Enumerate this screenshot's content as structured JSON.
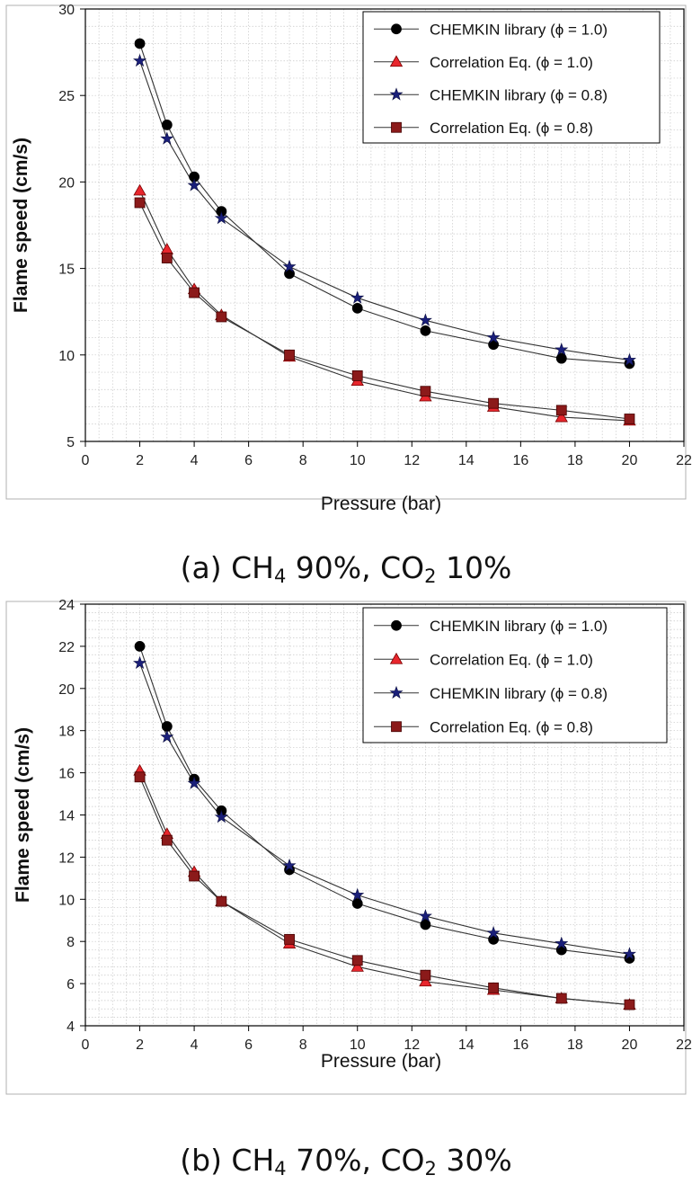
{
  "figure": {
    "caption_a": {
      "prefix": "(a) CH",
      "sub1": "4",
      "mid": " 90%, CO",
      "sub2": "2",
      "suffix": " 10%"
    },
    "caption_b": {
      "prefix": "(b) CH",
      "sub1": "4",
      "mid": " 70%, CO",
      "sub2": "2",
      "suffix": " 30%"
    }
  },
  "colors": {
    "chemkin_phi_1": "#000000",
    "correlation_phi_1": "#e8262d",
    "chemkin_phi_08": "#1a1f7a",
    "correlation_phi_08": "#8b1a1a",
    "line": "#333333",
    "grid": "#c8c8c8"
  },
  "chart_data": [
    {
      "type": "line",
      "caption": "(a) CH4 90%, CO2 10%",
      "xlabel": "Pressure (bar)",
      "ylabel": "Flame speed (cm/s)",
      "xlim": [
        0,
        22
      ],
      "ylim": [
        5,
        30
      ],
      "xticks": [
        0,
        2,
        4,
        6,
        8,
        10,
        12,
        14,
        16,
        18,
        20,
        22
      ],
      "yticks": [
        5,
        10,
        15,
        20,
        25,
        30
      ],
      "grid": true,
      "legend_position": "top-right",
      "x": [
        2,
        3,
        4,
        5,
        7.5,
        10,
        12.5,
        15,
        17.5,
        20
      ],
      "series": [
        {
          "name": "CHEMKIN library (ϕ = 1.0)",
          "marker": "circle",
          "color_key": "chemkin_phi_1",
          "values": [
            28.0,
            23.3,
            20.3,
            18.3,
            14.7,
            12.7,
            11.4,
            10.6,
            9.8,
            9.5
          ]
        },
        {
          "name": "Correlation Eq. (ϕ = 1.0)",
          "marker": "triangle",
          "color_key": "correlation_phi_1",
          "values": [
            19.5,
            16.1,
            13.8,
            12.3,
            9.9,
            8.5,
            7.6,
            7.0,
            6.4,
            6.2
          ]
        },
        {
          "name": "CHEMKIN library (ϕ = 0.8)",
          "marker": "star",
          "color_key": "chemkin_phi_08",
          "values": [
            27.0,
            22.5,
            19.8,
            17.9,
            15.1,
            13.3,
            12.0,
            11.0,
            10.3,
            9.7
          ]
        },
        {
          "name": "Correlation Eq. (ϕ = 0.8)",
          "marker": "square",
          "color_key": "correlation_phi_08",
          "values": [
            18.8,
            15.6,
            13.6,
            12.2,
            10.0,
            8.8,
            7.9,
            7.2,
            6.8,
            6.3
          ]
        }
      ]
    },
    {
      "type": "line",
      "caption": "(b) CH4 70%, CO2 30%",
      "xlabel": "Pressure (bar)",
      "ylabel": "Flame speed (cm/s)",
      "xlim": [
        0,
        22
      ],
      "ylim": [
        4,
        24
      ],
      "xticks": [
        0,
        2,
        4,
        6,
        8,
        10,
        12,
        14,
        16,
        18,
        20,
        22
      ],
      "yticks": [
        4,
        6,
        8,
        10,
        12,
        14,
        16,
        18,
        20,
        22,
        24
      ],
      "grid": true,
      "legend_position": "top-right",
      "x": [
        2,
        3,
        4,
        5,
        7.5,
        10,
        12.5,
        15,
        17.5,
        20
      ],
      "series": [
        {
          "name": "CHEMKIN library (ϕ = 1.0)",
          "marker": "circle",
          "color_key": "chemkin_phi_1",
          "values": [
            22.0,
            18.2,
            15.7,
            14.2,
            11.4,
            9.8,
            8.8,
            8.1,
            7.6,
            7.2
          ]
        },
        {
          "name": "Correlation Eq. (ϕ = 1.0)",
          "marker": "triangle",
          "color_key": "correlation_phi_1",
          "values": [
            16.1,
            13.1,
            11.3,
            9.9,
            7.9,
            6.8,
            6.1,
            5.7,
            5.3,
            5.0
          ]
        },
        {
          "name": "CHEMKIN library (ϕ = 0.8)",
          "marker": "star",
          "color_key": "chemkin_phi_08",
          "values": [
            21.2,
            17.7,
            15.5,
            13.9,
            11.6,
            10.2,
            9.2,
            8.4,
            7.9,
            7.4
          ]
        },
        {
          "name": "Correlation Eq. (ϕ = 0.8)",
          "marker": "square",
          "color_key": "correlation_phi_08",
          "values": [
            15.8,
            12.8,
            11.1,
            9.9,
            8.1,
            7.1,
            6.4,
            5.8,
            5.3,
            5.0
          ]
        }
      ]
    }
  ]
}
